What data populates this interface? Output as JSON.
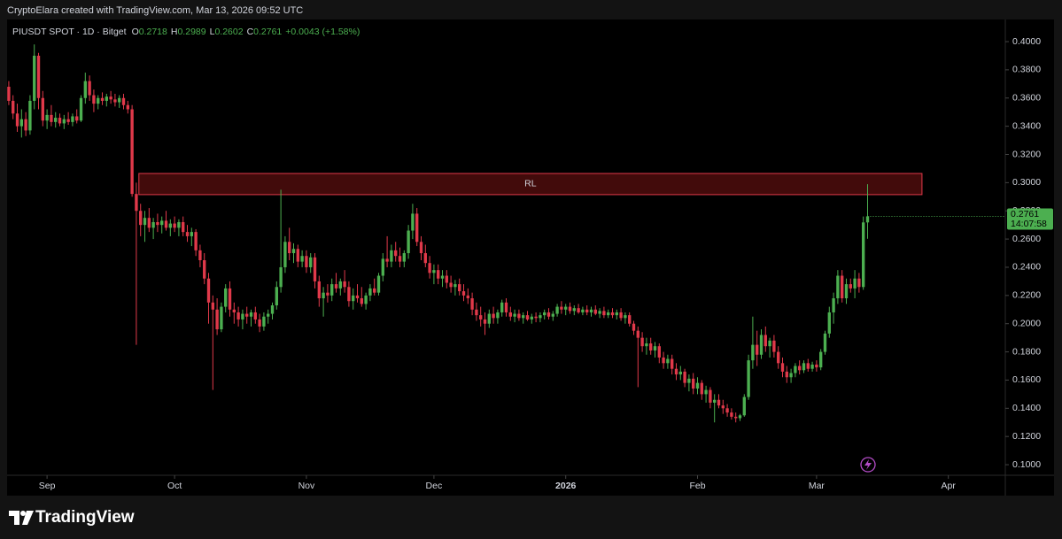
{
  "header": "CryptoElara created with TradingView.com, Mar 13, 2026 09:52 UTC",
  "brand": "TradingView",
  "chart_data": {
    "type": "candlestick",
    "title": "PIUSDT SPOT · 1D · Bitget",
    "ohlc_labels": [
      "O",
      "H",
      "L",
      "C"
    ],
    "change": "+0.0043 (+1.58%)",
    "countdown": "14:07:58",
    "up_color": "#4caf50",
    "down_color": "#e0394a",
    "ylim": [
      0.0925,
      0.4157
    ],
    "xlim": [
      -0.4,
      234.4
    ],
    "yticks": [
      {
        "value": 0.1,
        "label": "0.1000"
      },
      {
        "value": 0.12,
        "label": "0.1200"
      },
      {
        "value": 0.14,
        "label": "0.1400"
      },
      {
        "value": 0.16,
        "label": "0.1600"
      },
      {
        "value": 0.18,
        "label": "0.1800"
      },
      {
        "value": 0.2,
        "label": "0.2000"
      },
      {
        "value": 0.22,
        "label": "0.2200"
      },
      {
        "value": 0.24,
        "label": "0.2400"
      },
      {
        "value": 0.26,
        "label": "0.2600"
      },
      {
        "value": 0.28,
        "label": "0.2800"
      },
      {
        "value": 0.3,
        "label": "0.3000"
      },
      {
        "value": 0.32,
        "label": "0.3200"
      },
      {
        "value": 0.34,
        "label": "0.3400"
      },
      {
        "value": 0.36,
        "label": "0.3600"
      },
      {
        "value": 0.38,
        "label": "0.3800"
      },
      {
        "value": 0.4,
        "label": "0.4000"
      }
    ],
    "xticks": [
      {
        "value": 9,
        "label": "Sep"
      },
      {
        "value": 39,
        "label": "Oct"
      },
      {
        "value": 70,
        "label": "Nov"
      },
      {
        "value": 100,
        "label": "Dec"
      },
      {
        "value": 131,
        "label": "2026"
      },
      {
        "value": 162,
        "label": "Feb"
      },
      {
        "value": 190,
        "label": "Mar"
      },
      {
        "value": 221,
        "label": "Apr"
      }
    ],
    "zone": {
      "label": "RL",
      "y": [
        0.2915,
        0.3065
      ],
      "x": [
        30.6,
        214.8
      ]
    },
    "ohlc": [
      [
        0.368,
        0.372,
        0.355,
        0.358
      ],
      [
        0.358,
        0.362,
        0.345,
        0.349
      ],
      [
        0.349,
        0.356,
        0.336,
        0.34
      ],
      [
        0.34,
        0.352,
        0.332,
        0.345
      ],
      [
        0.345,
        0.35,
        0.333,
        0.337
      ],
      [
        0.337,
        0.362,
        0.334,
        0.358
      ],
      [
        0.358,
        0.398,
        0.352,
        0.39
      ],
      [
        0.39,
        0.392,
        0.352,
        0.36
      ],
      [
        0.36,
        0.365,
        0.34,
        0.344
      ],
      [
        0.344,
        0.352,
        0.338,
        0.348
      ],
      [
        0.348,
        0.355,
        0.34,
        0.343
      ],
      [
        0.343,
        0.35,
        0.339,
        0.346
      ],
      [
        0.346,
        0.349,
        0.34,
        0.342
      ],
      [
        0.342,
        0.348,
        0.338,
        0.345
      ],
      [
        0.345,
        0.35,
        0.341,
        0.343
      ],
      [
        0.343,
        0.349,
        0.34,
        0.347
      ],
      [
        0.347,
        0.352,
        0.342,
        0.344
      ],
      [
        0.344,
        0.362,
        0.343,
        0.36
      ],
      [
        0.36,
        0.378,
        0.356,
        0.372
      ],
      [
        0.372,
        0.376,
        0.358,
        0.362
      ],
      [
        0.362,
        0.366,
        0.35,
        0.356
      ],
      [
        0.356,
        0.362,
        0.352,
        0.36
      ],
      [
        0.36,
        0.364,
        0.355,
        0.358
      ],
      [
        0.358,
        0.363,
        0.354,
        0.361
      ],
      [
        0.361,
        0.365,
        0.356,
        0.359
      ],
      [
        0.359,
        0.363,
        0.354,
        0.357
      ],
      [
        0.357,
        0.362,
        0.353,
        0.36
      ],
      [
        0.36,
        0.363,
        0.352,
        0.355
      ],
      [
        0.355,
        0.358,
        0.349,
        0.352
      ],
      [
        0.352,
        0.355,
        0.29,
        0.292
      ],
      [
        0.292,
        0.3,
        0.185,
        0.28
      ],
      [
        0.28,
        0.285,
        0.262,
        0.27
      ],
      [
        0.27,
        0.28,
        0.258,
        0.275
      ],
      [
        0.275,
        0.282,
        0.265,
        0.268
      ],
      [
        0.268,
        0.275,
        0.26,
        0.272
      ],
      [
        0.272,
        0.278,
        0.265,
        0.27
      ],
      [
        0.27,
        0.276,
        0.264,
        0.273
      ],
      [
        0.273,
        0.28,
        0.266,
        0.268
      ],
      [
        0.268,
        0.274,
        0.262,
        0.271
      ],
      [
        0.271,
        0.276,
        0.265,
        0.268
      ],
      [
        0.268,
        0.274,
        0.262,
        0.272
      ],
      [
        0.272,
        0.276,
        0.262,
        0.265
      ],
      [
        0.265,
        0.27,
        0.258,
        0.262
      ],
      [
        0.262,
        0.268,
        0.255,
        0.265
      ],
      [
        0.265,
        0.267,
        0.248,
        0.252
      ],
      [
        0.252,
        0.256,
        0.24,
        0.245
      ],
      [
        0.245,
        0.25,
        0.228,
        0.232
      ],
      [
        0.232,
        0.236,
        0.2,
        0.215
      ],
      [
        0.215,
        0.22,
        0.153,
        0.21
      ],
      [
        0.21,
        0.218,
        0.192,
        0.196
      ],
      [
        0.196,
        0.215,
        0.194,
        0.212
      ],
      [
        0.212,
        0.228,
        0.208,
        0.225
      ],
      [
        0.225,
        0.23,
        0.205,
        0.21
      ],
      [
        0.21,
        0.215,
        0.2,
        0.208
      ],
      [
        0.208,
        0.212,
        0.198,
        0.203
      ],
      [
        0.203,
        0.21,
        0.196,
        0.207
      ],
      [
        0.207,
        0.212,
        0.2,
        0.205
      ],
      [
        0.205,
        0.21,
        0.198,
        0.208
      ],
      [
        0.208,
        0.212,
        0.2,
        0.203
      ],
      [
        0.203,
        0.207,
        0.194,
        0.198
      ],
      [
        0.198,
        0.208,
        0.195,
        0.205
      ],
      [
        0.205,
        0.21,
        0.2,
        0.207
      ],
      [
        0.207,
        0.215,
        0.203,
        0.213
      ],
      [
        0.213,
        0.23,
        0.21,
        0.226
      ],
      [
        0.226,
        0.295,
        0.222,
        0.24
      ],
      [
        0.24,
        0.262,
        0.236,
        0.258
      ],
      [
        0.258,
        0.268,
        0.245,
        0.25
      ],
      [
        0.25,
        0.257,
        0.243,
        0.253
      ],
      [
        0.253,
        0.256,
        0.24,
        0.244
      ],
      [
        0.244,
        0.252,
        0.24,
        0.248
      ],
      [
        0.248,
        0.252,
        0.236,
        0.24
      ],
      [
        0.24,
        0.25,
        0.236,
        0.247
      ],
      [
        0.247,
        0.25,
        0.225,
        0.23
      ],
      [
        0.23,
        0.234,
        0.212,
        0.218
      ],
      [
        0.218,
        0.226,
        0.205,
        0.222
      ],
      [
        0.222,
        0.228,
        0.215,
        0.22
      ],
      [
        0.22,
        0.232,
        0.216,
        0.228
      ],
      [
        0.228,
        0.236,
        0.222,
        0.225
      ],
      [
        0.225,
        0.232,
        0.22,
        0.23
      ],
      [
        0.23,
        0.238,
        0.222,
        0.226
      ],
      [
        0.226,
        0.23,
        0.212,
        0.216
      ],
      [
        0.216,
        0.225,
        0.21,
        0.22
      ],
      [
        0.22,
        0.228,
        0.215,
        0.218
      ],
      [
        0.218,
        0.226,
        0.212,
        0.214
      ],
      [
        0.214,
        0.222,
        0.21,
        0.22
      ],
      [
        0.22,
        0.228,
        0.216,
        0.225
      ],
      [
        0.225,
        0.232,
        0.22,
        0.222
      ],
      [
        0.222,
        0.236,
        0.22,
        0.234
      ],
      [
        0.234,
        0.25,
        0.23,
        0.246
      ],
      [
        0.246,
        0.262,
        0.24,
        0.244
      ],
      [
        0.244,
        0.256,
        0.24,
        0.252
      ],
      [
        0.252,
        0.258,
        0.244,
        0.248
      ],
      [
        0.248,
        0.254,
        0.24,
        0.244
      ],
      [
        0.244,
        0.252,
        0.24,
        0.25
      ],
      [
        0.25,
        0.27,
        0.246,
        0.266
      ],
      [
        0.266,
        0.285,
        0.26,
        0.278
      ],
      [
        0.278,
        0.282,
        0.255,
        0.258
      ],
      [
        0.258,
        0.262,
        0.245,
        0.25
      ],
      [
        0.25,
        0.256,
        0.24,
        0.243
      ],
      [
        0.243,
        0.248,
        0.232,
        0.236
      ],
      [
        0.236,
        0.242,
        0.228,
        0.238
      ],
      [
        0.238,
        0.242,
        0.228,
        0.232
      ],
      [
        0.232,
        0.238,
        0.226,
        0.234
      ],
      [
        0.234,
        0.238,
        0.225,
        0.229
      ],
      [
        0.229,
        0.234,
        0.222,
        0.226
      ],
      [
        0.226,
        0.231,
        0.22,
        0.228
      ],
      [
        0.228,
        0.232,
        0.22,
        0.223
      ],
      [
        0.223,
        0.228,
        0.216,
        0.22
      ],
      [
        0.22,
        0.225,
        0.214,
        0.218
      ],
      [
        0.218,
        0.222,
        0.206,
        0.21
      ],
      [
        0.21,
        0.215,
        0.202,
        0.206
      ],
      [
        0.206,
        0.212,
        0.198,
        0.203
      ],
      [
        0.203,
        0.208,
        0.192,
        0.2
      ],
      [
        0.2,
        0.21,
        0.197,
        0.207
      ],
      [
        0.207,
        0.212,
        0.2,
        0.204
      ],
      [
        0.204,
        0.21,
        0.2,
        0.208
      ],
      [
        0.208,
        0.217,
        0.205,
        0.215
      ],
      [
        0.215,
        0.218,
        0.205,
        0.208
      ],
      [
        0.208,
        0.212,
        0.202,
        0.205
      ],
      [
        0.205,
        0.21,
        0.201,
        0.207
      ],
      [
        0.207,
        0.21,
        0.202,
        0.204
      ],
      [
        0.204,
        0.208,
        0.2,
        0.206
      ],
      [
        0.206,
        0.209,
        0.202,
        0.203
      ],
      [
        0.203,
        0.207,
        0.2,
        0.205
      ],
      [
        0.205,
        0.208,
        0.201,
        0.204
      ],
      [
        0.204,
        0.208,
        0.201,
        0.206
      ],
      [
        0.206,
        0.21,
        0.203,
        0.208
      ],
      [
        0.208,
        0.211,
        0.203,
        0.205
      ],
      [
        0.205,
        0.209,
        0.202,
        0.207
      ],
      [
        0.207,
        0.214,
        0.205,
        0.212
      ],
      [
        0.212,
        0.216,
        0.207,
        0.21
      ],
      [
        0.21,
        0.214,
        0.206,
        0.212
      ],
      [
        0.212,
        0.215,
        0.207,
        0.209
      ],
      [
        0.209,
        0.213,
        0.206,
        0.211
      ],
      [
        0.211,
        0.214,
        0.207,
        0.208
      ],
      [
        0.208,
        0.212,
        0.206,
        0.21
      ],
      [
        0.21,
        0.213,
        0.206,
        0.208
      ],
      [
        0.208,
        0.212,
        0.205,
        0.21
      ],
      [
        0.21,
        0.213,
        0.206,
        0.207
      ],
      [
        0.207,
        0.211,
        0.204,
        0.209
      ],
      [
        0.209,
        0.212,
        0.204,
        0.206
      ],
      [
        0.206,
        0.21,
        0.204,
        0.208
      ],
      [
        0.208,
        0.211,
        0.204,
        0.206
      ],
      [
        0.206,
        0.21,
        0.203,
        0.208
      ],
      [
        0.208,
        0.211,
        0.202,
        0.204
      ],
      [
        0.204,
        0.208,
        0.2,
        0.206
      ],
      [
        0.206,
        0.208,
        0.198,
        0.2
      ],
      [
        0.2,
        0.202,
        0.192,
        0.195
      ],
      [
        0.195,
        0.198,
        0.155,
        0.19
      ],
      [
        0.19,
        0.194,
        0.18,
        0.184
      ],
      [
        0.184,
        0.19,
        0.178,
        0.186
      ],
      [
        0.186,
        0.19,
        0.178,
        0.181
      ],
      [
        0.181,
        0.187,
        0.176,
        0.184
      ],
      [
        0.184,
        0.186,
        0.172,
        0.176
      ],
      [
        0.176,
        0.18,
        0.168,
        0.172
      ],
      [
        0.172,
        0.178,
        0.168,
        0.175
      ],
      [
        0.175,
        0.178,
        0.164,
        0.168
      ],
      [
        0.168,
        0.172,
        0.16,
        0.164
      ],
      [
        0.164,
        0.17,
        0.16,
        0.166
      ],
      [
        0.166,
        0.168,
        0.155,
        0.158
      ],
      [
        0.158,
        0.164,
        0.152,
        0.161
      ],
      [
        0.161,
        0.165,
        0.15,
        0.154
      ],
      [
        0.154,
        0.162,
        0.15,
        0.158
      ],
      [
        0.158,
        0.16,
        0.146,
        0.15
      ],
      [
        0.15,
        0.156,
        0.144,
        0.153
      ],
      [
        0.153,
        0.155,
        0.14,
        0.144
      ],
      [
        0.144,
        0.15,
        0.13,
        0.146
      ],
      [
        0.146,
        0.15,
        0.14,
        0.142
      ],
      [
        0.142,
        0.146,
        0.136,
        0.14
      ],
      [
        0.14,
        0.143,
        0.134,
        0.137
      ],
      [
        0.137,
        0.14,
        0.132,
        0.134
      ],
      [
        0.134,
        0.137,
        0.13,
        0.133
      ],
      [
        0.133,
        0.136,
        0.131,
        0.135
      ],
      [
        0.135,
        0.15,
        0.134,
        0.148
      ],
      [
        0.148,
        0.178,
        0.146,
        0.174
      ],
      [
        0.174,
        0.205,
        0.168,
        0.185
      ],
      [
        0.185,
        0.195,
        0.17,
        0.178
      ],
      [
        0.178,
        0.196,
        0.175,
        0.192
      ],
      [
        0.192,
        0.198,
        0.18,
        0.184
      ],
      [
        0.184,
        0.19,
        0.176,
        0.188
      ],
      [
        0.188,
        0.192,
        0.176,
        0.18
      ],
      [
        0.18,
        0.184,
        0.168,
        0.172
      ],
      [
        0.172,
        0.176,
        0.162,
        0.166
      ],
      [
        0.166,
        0.17,
        0.158,
        0.162
      ],
      [
        0.162,
        0.168,
        0.158,
        0.165
      ],
      [
        0.165,
        0.172,
        0.162,
        0.17
      ],
      [
        0.17,
        0.174,
        0.164,
        0.167
      ],
      [
        0.167,
        0.174,
        0.165,
        0.172
      ],
      [
        0.172,
        0.175,
        0.166,
        0.168
      ],
      [
        0.168,
        0.173,
        0.166,
        0.171
      ],
      [
        0.171,
        0.174,
        0.166,
        0.169
      ],
      [
        0.169,
        0.182,
        0.167,
        0.18
      ],
      [
        0.18,
        0.195,
        0.178,
        0.193
      ],
      [
        0.193,
        0.212,
        0.19,
        0.208
      ],
      [
        0.208,
        0.222,
        0.2,
        0.218
      ],
      [
        0.218,
        0.238,
        0.214,
        0.234
      ],
      [
        0.234,
        0.238,
        0.215,
        0.218
      ],
      [
        0.218,
        0.232,
        0.214,
        0.228
      ],
      [
        0.228,
        0.232,
        0.222,
        0.225
      ],
      [
        0.225,
        0.238,
        0.218,
        0.232
      ],
      [
        0.232,
        0.236,
        0.222,
        0.226
      ],
      [
        0.226,
        0.276,
        0.224,
        0.2718
      ],
      [
        0.2718,
        0.2989,
        0.2602,
        0.2761
      ]
    ]
  }
}
